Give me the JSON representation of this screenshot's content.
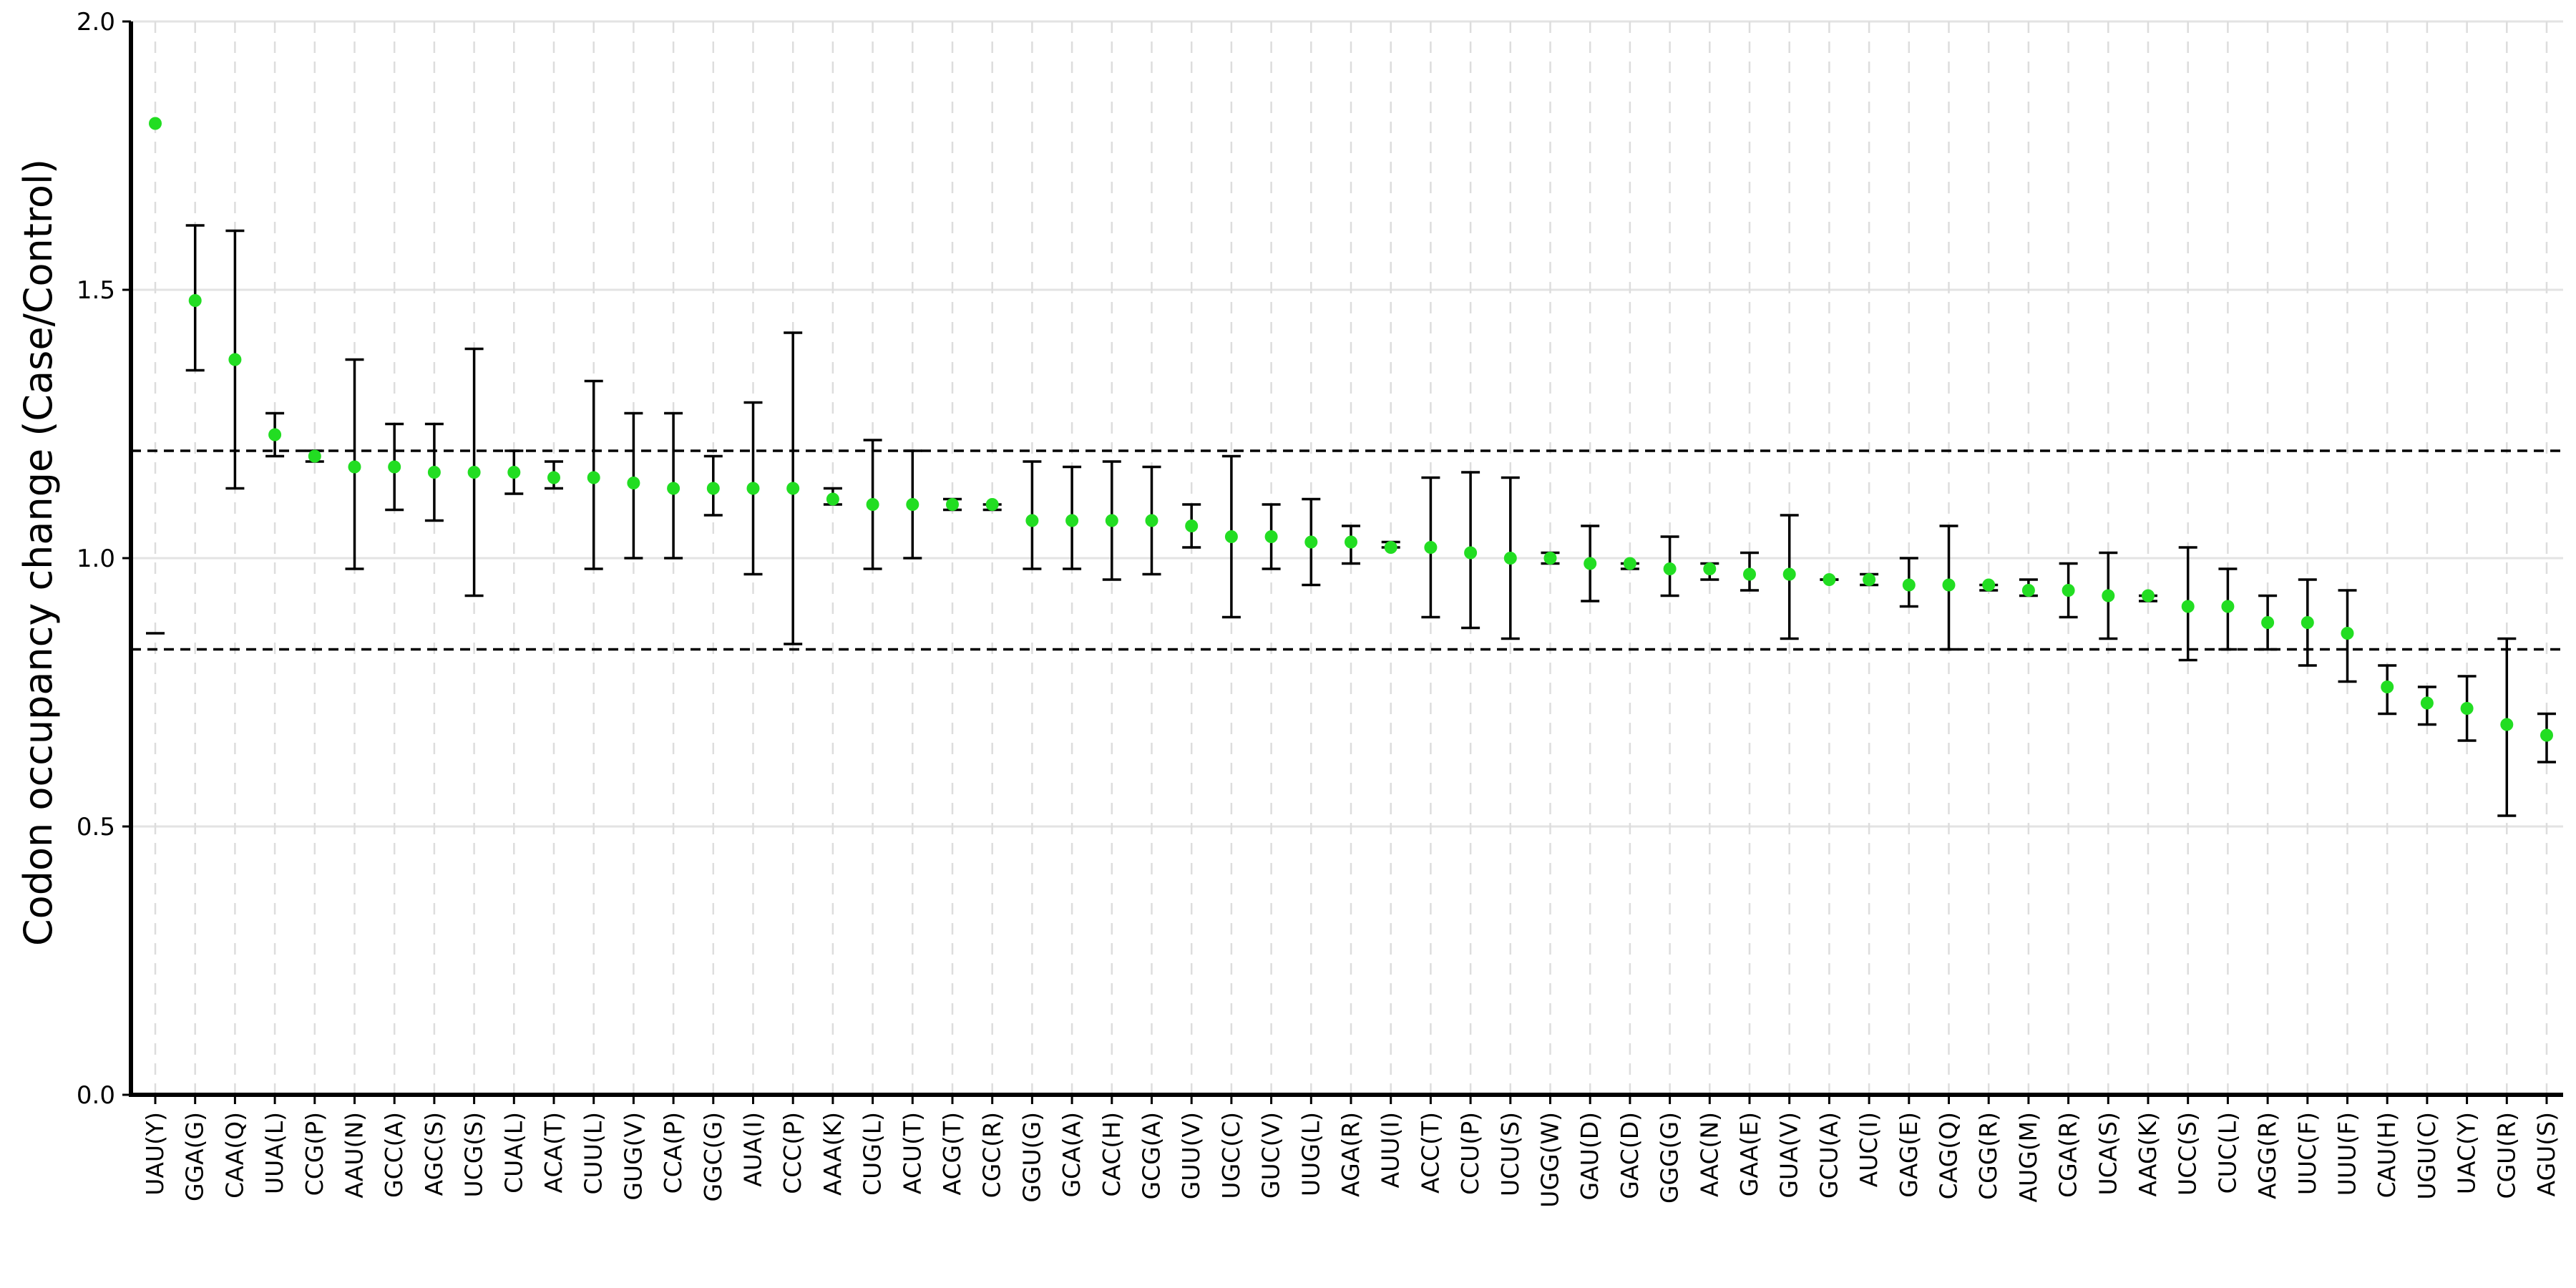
{
  "chart_data": {
    "type": "scatter",
    "ylabel": "Codon occupancy change (Case/Control)",
    "ylim": [
      0,
      2
    ],
    "yticks": [
      "0.0",
      "0.5",
      "1.0",
      "1.5",
      "2.0"
    ],
    "threshold_lines": [
      1.2,
      0.83
    ],
    "grid": true,
    "point_color": "#22dd22",
    "errorbar_color": "#000000",
    "points": [
      {
        "codon": "UAU(Y)",
        "value": 1.81,
        "err_low": 0.86,
        "err_high": null
      },
      {
        "codon": "GGA(G)",
        "value": 1.48,
        "err_low": 1.35,
        "err_high": 1.62
      },
      {
        "codon": "CAA(Q)",
        "value": 1.37,
        "err_low": 1.13,
        "err_high": 1.61
      },
      {
        "codon": "UUA(L)",
        "value": 1.23,
        "err_low": 1.19,
        "err_high": 1.27
      },
      {
        "codon": "CCG(P)",
        "value": 1.19,
        "err_low": 1.18,
        "err_high": 1.2
      },
      {
        "codon": "AAU(N)",
        "value": 1.17,
        "err_low": 0.98,
        "err_high": 1.37
      },
      {
        "codon": "GCC(A)",
        "value": 1.17,
        "err_low": 1.09,
        "err_high": 1.25
      },
      {
        "codon": "AGC(S)",
        "value": 1.16,
        "err_low": 1.07,
        "err_high": 1.25
      },
      {
        "codon": "UCG(S)",
        "value": 1.16,
        "err_low": 0.93,
        "err_high": 1.39
      },
      {
        "codon": "CUA(L)",
        "value": 1.16,
        "err_low": 1.12,
        "err_high": 1.2
      },
      {
        "codon": "ACA(T)",
        "value": 1.15,
        "err_low": 1.13,
        "err_high": 1.18
      },
      {
        "codon": "CUU(L)",
        "value": 1.15,
        "err_low": 0.98,
        "err_high": 1.33
      },
      {
        "codon": "GUG(V)",
        "value": 1.14,
        "err_low": 1.0,
        "err_high": 1.27
      },
      {
        "codon": "CCA(P)",
        "value": 1.13,
        "err_low": 1.0,
        "err_high": 1.27
      },
      {
        "codon": "GGC(G)",
        "value": 1.13,
        "err_low": 1.08,
        "err_high": 1.19
      },
      {
        "codon": "AUA(I)",
        "value": 1.13,
        "err_low": 0.97,
        "err_high": 1.29
      },
      {
        "codon": "CCC(P)",
        "value": 1.13,
        "err_low": 0.84,
        "err_high": 1.42
      },
      {
        "codon": "AAA(K)",
        "value": 1.11,
        "err_low": 1.1,
        "err_high": 1.13
      },
      {
        "codon": "CUG(L)",
        "value": 1.1,
        "err_low": 0.98,
        "err_high": 1.22
      },
      {
        "codon": "ACU(T)",
        "value": 1.1,
        "err_low": 1.0,
        "err_high": 1.2
      },
      {
        "codon": "ACG(T)",
        "value": 1.1,
        "err_low": 1.09,
        "err_high": 1.11
      },
      {
        "codon": "CGC(R)",
        "value": 1.1,
        "err_low": 1.09,
        "err_high": 1.1
      },
      {
        "codon": "GGU(G)",
        "value": 1.07,
        "err_low": 0.98,
        "err_high": 1.18
      },
      {
        "codon": "GCA(A)",
        "value": 1.07,
        "err_low": 0.98,
        "err_high": 1.17
      },
      {
        "codon": "CAC(H)",
        "value": 1.07,
        "err_low": 0.96,
        "err_high": 1.18
      },
      {
        "codon": "GCG(A)",
        "value": 1.07,
        "err_low": 0.97,
        "err_high": 1.17
      },
      {
        "codon": "GUU(V)",
        "value": 1.06,
        "err_low": 1.02,
        "err_high": 1.1
      },
      {
        "codon": "UGC(C)",
        "value": 1.04,
        "err_low": 0.89,
        "err_high": 1.19
      },
      {
        "codon": "GUC(V)",
        "value": 1.04,
        "err_low": 0.98,
        "err_high": 1.1
      },
      {
        "codon": "UUG(L)",
        "value": 1.03,
        "err_low": 0.95,
        "err_high": 1.11
      },
      {
        "codon": "AGA(R)",
        "value": 1.03,
        "err_low": 0.99,
        "err_high": 1.06
      },
      {
        "codon": "AUU(I)",
        "value": 1.02,
        "err_low": 1.02,
        "err_high": 1.03
      },
      {
        "codon": "ACC(T)",
        "value": 1.02,
        "err_low": 0.89,
        "err_high": 1.15
      },
      {
        "codon": "CCU(P)",
        "value": 1.01,
        "err_low": 0.87,
        "err_high": 1.16
      },
      {
        "codon": "UCU(S)",
        "value": 1.0,
        "err_low": 0.85,
        "err_high": 1.15
      },
      {
        "codon": "UGG(W)",
        "value": 1.0,
        "err_low": 0.99,
        "err_high": 1.01
      },
      {
        "codon": "GAU(D)",
        "value": 0.99,
        "err_low": 0.92,
        "err_high": 1.06
      },
      {
        "codon": "GAC(D)",
        "value": 0.99,
        "err_low": 0.98,
        "err_high": 0.99
      },
      {
        "codon": "GGG(G)",
        "value": 0.98,
        "err_low": 0.93,
        "err_high": 1.04
      },
      {
        "codon": "AAC(N)",
        "value": 0.98,
        "err_low": 0.96,
        "err_high": 0.99
      },
      {
        "codon": "GAA(E)",
        "value": 0.97,
        "err_low": 0.94,
        "err_high": 1.01
      },
      {
        "codon": "GUA(V)",
        "value": 0.97,
        "err_low": 0.85,
        "err_high": 1.08
      },
      {
        "codon": "GCU(A)",
        "value": 0.96,
        "err_low": 0.96,
        "err_high": 0.96
      },
      {
        "codon": "AUC(I)",
        "value": 0.96,
        "err_low": 0.95,
        "err_high": 0.97
      },
      {
        "codon": "GAG(E)",
        "value": 0.95,
        "err_low": 0.91,
        "err_high": 1.0
      },
      {
        "codon": "CAG(Q)",
        "value": 0.95,
        "err_low": 0.83,
        "err_high": 1.06
      },
      {
        "codon": "CGG(R)",
        "value": 0.95,
        "err_low": 0.94,
        "err_high": 0.95
      },
      {
        "codon": "AUG(M)",
        "value": 0.94,
        "err_low": 0.93,
        "err_high": 0.96
      },
      {
        "codon": "CGA(R)",
        "value": 0.94,
        "err_low": 0.89,
        "err_high": 0.99
      },
      {
        "codon": "UCA(S)",
        "value": 0.93,
        "err_low": 0.85,
        "err_high": 1.01
      },
      {
        "codon": "AAG(K)",
        "value": 0.93,
        "err_low": 0.92,
        "err_high": 0.93
      },
      {
        "codon": "UCC(S)",
        "value": 0.91,
        "err_low": 0.81,
        "err_high": 1.02
      },
      {
        "codon": "CUC(L)",
        "value": 0.91,
        "err_low": 0.83,
        "err_high": 0.98
      },
      {
        "codon": "AGG(R)",
        "value": 0.88,
        "err_low": 0.83,
        "err_high": 0.93
      },
      {
        "codon": "UUC(F)",
        "value": 0.88,
        "err_low": 0.8,
        "err_high": 0.96
      },
      {
        "codon": "UUU(F)",
        "value": 0.86,
        "err_low": 0.77,
        "err_high": 0.94
      },
      {
        "codon": "CAU(H)",
        "value": 0.76,
        "err_low": 0.71,
        "err_high": 0.8
      },
      {
        "codon": "UGU(C)",
        "value": 0.73,
        "err_low": 0.69,
        "err_high": 0.76
      },
      {
        "codon": "UAC(Y)",
        "value": 0.72,
        "err_low": 0.66,
        "err_high": 0.78
      },
      {
        "codon": "CGU(R)",
        "value": 0.69,
        "err_low": 0.52,
        "err_high": 0.85
      },
      {
        "codon": "AGU(S)",
        "value": 0.67,
        "err_low": 0.62,
        "err_high": 0.71
      }
    ]
  }
}
